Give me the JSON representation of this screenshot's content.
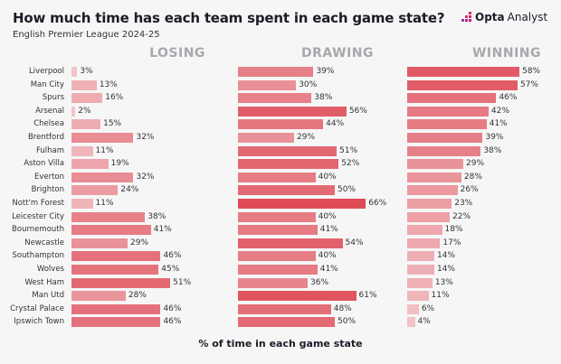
{
  "header": {
    "title": "How much time has each team spent in each game state?",
    "subtitle": "English Premier League 2024-25",
    "logo_bold": "Opta",
    "logo_light": "Analyst"
  },
  "chart_data": {
    "type": "bar",
    "title": "How much time has each team spent in each game state?",
    "subtitle": "English Premier League 2024-25",
    "xlabel": "% of time in each game state",
    "unit": "%",
    "categories": [
      "Liverpool",
      "Man City",
      "Spurs",
      "Arsenal",
      "Chelsea",
      "Brentford",
      "Fulham",
      "Aston Villa",
      "Everton",
      "Brighton",
      "Nott'm Forest",
      "Leicester City",
      "Bournemouth",
      "Newcastle",
      "Southampton",
      "Wolves",
      "West Ham",
      "Man Utd",
      "Crystal Palace",
      "Ipswich Town"
    ],
    "series": [
      {
        "name": "LOSING",
        "values": [
          3,
          13,
          16,
          2,
          15,
          32,
          11,
          19,
          32,
          24,
          11,
          38,
          41,
          29,
          46,
          45,
          51,
          28,
          46,
          46
        ]
      },
      {
        "name": "DRAWING",
        "values": [
          39,
          30,
          38,
          56,
          44,
          29,
          51,
          52,
          40,
          50,
          66,
          40,
          41,
          54,
          40,
          41,
          36,
          61,
          48,
          50
        ]
      },
      {
        "name": "WINNING",
        "values": [
          58,
          57,
          46,
          42,
          41,
          39,
          38,
          29,
          28,
          26,
          23,
          22,
          18,
          17,
          14,
          14,
          13,
          11,
          6,
          4
        ]
      }
    ],
    "colors": {
      "low": "#f2c6c9",
      "high": "#de4b57"
    }
  }
}
